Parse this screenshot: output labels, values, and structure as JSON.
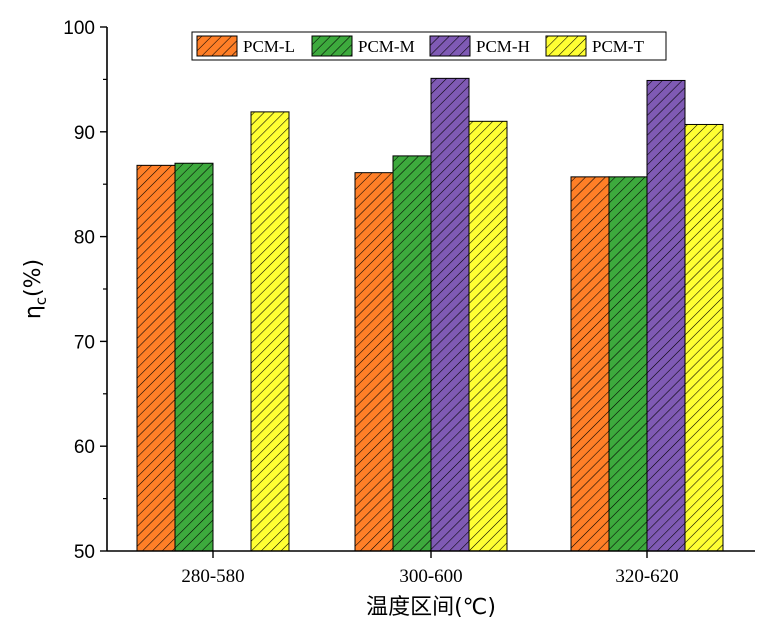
{
  "chart_data": {
    "type": "bar",
    "categories": [
      "280-580",
      "300-600",
      "320-620"
    ],
    "series": [
      {
        "name": "PCM-L",
        "color": "#FF7F27",
        "values": [
          86.8,
          86.1,
          85.7
        ]
      },
      {
        "name": "PCM-M",
        "color": "#3DAA3D",
        "values": [
          87.0,
          87.7,
          85.7
        ]
      },
      {
        "name": "PCM-H",
        "color": "#7F5AB4",
        "values": [
          null,
          95.1,
          94.9
        ]
      },
      {
        "name": "PCM-T",
        "color": "#FFFF33",
        "values": [
          91.9,
          91.0,
          90.7
        ]
      }
    ],
    "pattern": "diagonal-hatch",
    "ylim": [
      50,
      100
    ],
    "yticks": [
      50,
      60,
      70,
      80,
      90,
      100
    ],
    "xlabel": "温度区间(℃)",
    "ylabel_main": "η",
    "ylabel_sub": "c",
    "ylabel_suffix": "(%)",
    "legend_position": "top-center",
    "grid": false
  }
}
